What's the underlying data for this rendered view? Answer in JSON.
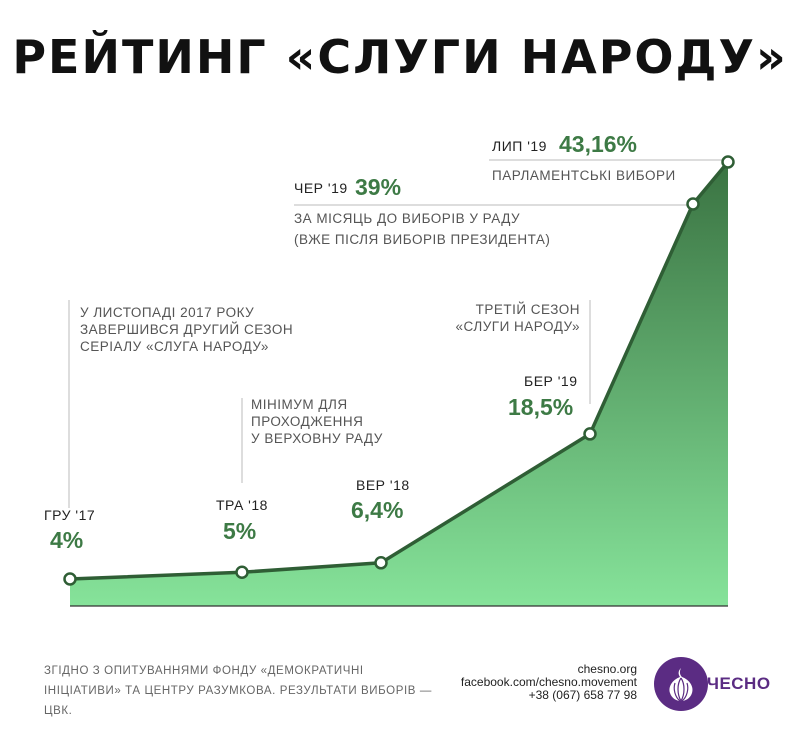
{
  "title": "РЕЙТИНГ «СЛУГИ НАРОДУ»",
  "chart_data": {
    "type": "area",
    "x": [
      "ГРУ '17",
      "ТРА '18",
      "ВЕР '18",
      "БЕР '19",
      "ЧЕР '19",
      "ЛИП '19"
    ],
    "values": [
      4,
      5,
      6.4,
      18.5,
      39,
      43.16
    ],
    "value_labels": [
      "4%",
      "5%",
      "6,4%",
      "18,5%",
      "39%",
      "43,16%"
    ],
    "annotations": {
      "season2": [
        "У ЛИСТОПАДІ 2017 РОКУ",
        "ЗАВЕРШИВСЯ ДРУГИЙ СЕЗОН",
        "СЕРІАЛУ «СЛУГА НАРОДУ»"
      ],
      "threshold": [
        "МІНІМУМ ДЛЯ",
        "ПРОХОДЖЕННЯ",
        "У ВЕРХОВНУ РАДУ"
      ],
      "season3": [
        "ТРЕТІЙ СЕЗОН",
        "«СЛУГИ НАРОДУ»"
      ],
      "before_elections": [
        "ЗА МІСЯЦЬ ДО ВИБОРІВ У РАДУ",
        "(ВЖЕ ПІСЛЯ ВИБОРІВ ПРЕЗИДЕНТА)"
      ],
      "parliament": [
        "ПАРЛАМЕНТСЬКІ ВИБОРИ"
      ]
    },
    "colors": {
      "line": "#2f5e35",
      "fill_top": "#3a7342",
      "fill_bottom": "#86e39a",
      "value_text": "#3d7a45"
    }
  },
  "footer": {
    "source": "ЗГІДНО З ОПИТУВАННЯМИ ФОНДУ «ДЕМОКРАТИЧНІ ІНІЦІАТИВИ» ТА ЦЕНТРУ РАЗУМКОВА. РЕЗУЛЬТАТИ ВИБОРІВ — ЦВК.",
    "contacts": [
      "chesno.org",
      "facebook.com/chesno.movement",
      "+38 (067) 658 77 98"
    ],
    "logo_text": "ЧЕСНО",
    "logo_color": "#5b2c83"
  }
}
